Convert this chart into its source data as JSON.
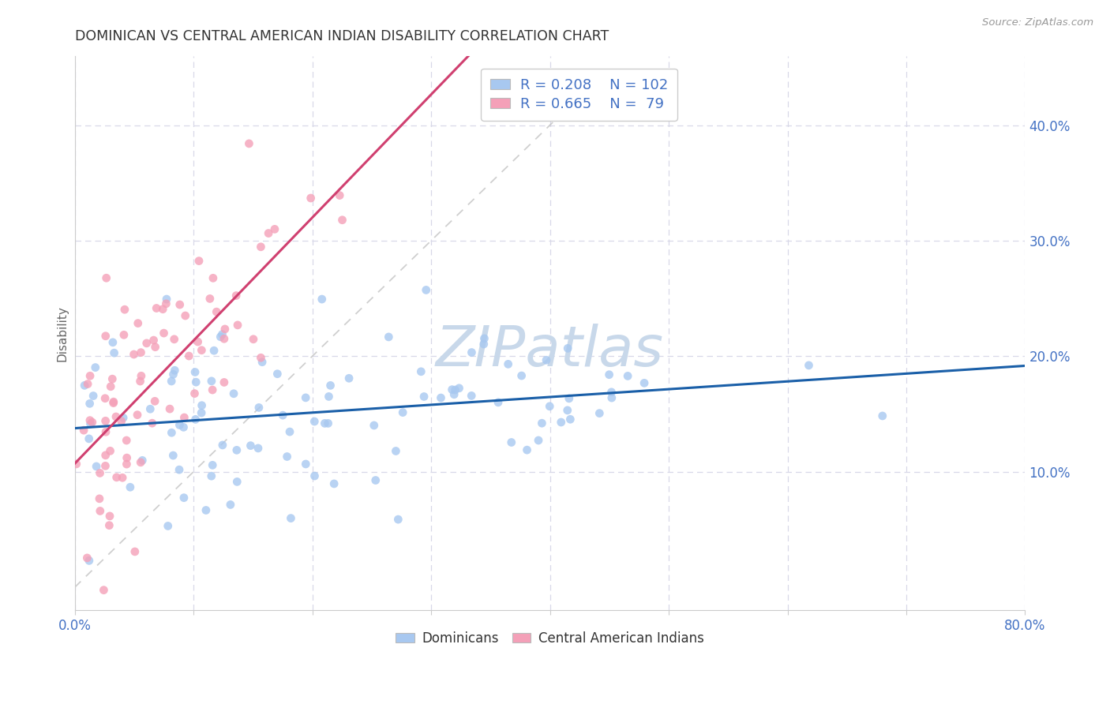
{
  "title": "DOMINICAN VS CENTRAL AMERICAN INDIAN DISABILITY CORRELATION CHART",
  "source": "Source: ZipAtlas.com",
  "ylabel": "Disability",
  "ytick_vals": [
    0.1,
    0.2,
    0.3,
    0.4
  ],
  "ytick_labels": [
    "10.0%",
    "20.0%",
    "30.0%",
    "40.0%"
  ],
  "xlim": [
    0.0,
    0.8
  ],
  "ylim": [
    -0.02,
    0.46
  ],
  "legend_R1": "0.208",
  "legend_N1": "102",
  "legend_R2": "0.665",
  "legend_N2": "79",
  "color_blue": "#a8c8f0",
  "color_pink": "#f4a0b8",
  "line_color_blue": "#1a5fa8",
  "line_color_pink": "#d04070",
  "line_color_diag": "#c0c0c0",
  "text_color_axis": "#4472c4",
  "grid_color": "#d8d8e8",
  "background": "#ffffff",
  "watermark_text": "ZIPatlas",
  "watermark_color": "#c8d8ea",
  "N_blue": 102,
  "N_pink": 79,
  "seed_blue": 7,
  "seed_pink": 13
}
